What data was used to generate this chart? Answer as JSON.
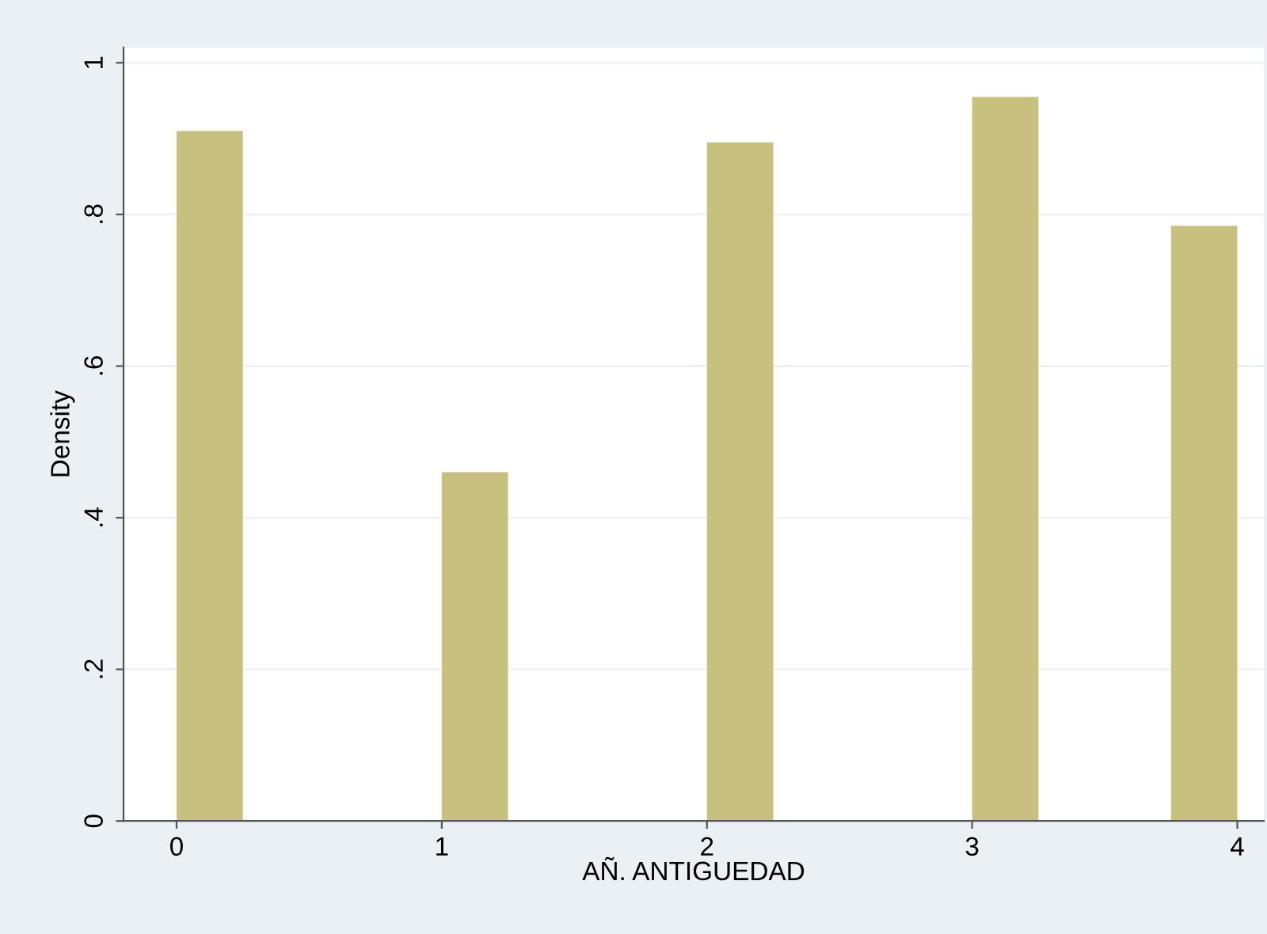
{
  "chart_data": {
    "type": "histogram",
    "xlabel": "AÑ. ANTIGUEDAD",
    "ylabel": "Density",
    "bins": [
      0,
      0.25,
      1,
      1.25,
      2,
      2.25,
      3,
      3.25,
      3.75,
      4
    ],
    "values": [
      0.91,
      0,
      0.46,
      0,
      0.895,
      0,
      0.955,
      0,
      0.785
    ],
    "color": "#c8c07e",
    "xlim": [
      -0.2,
      4.1
    ],
    "xticks": [
      0,
      1,
      2,
      3,
      4
    ],
    "ylim": [
      0,
      1.02
    ],
    "yticks": [
      0,
      {
        "value": 0.2,
        "label": ".2"
      },
      {
        "value": 0.4,
        "label": ".4"
      },
      {
        "value": 0.6,
        "label": ".6"
      },
      {
        "value": 0.8,
        "label": ".8"
      },
      1
    ],
    "grid": "y"
  }
}
